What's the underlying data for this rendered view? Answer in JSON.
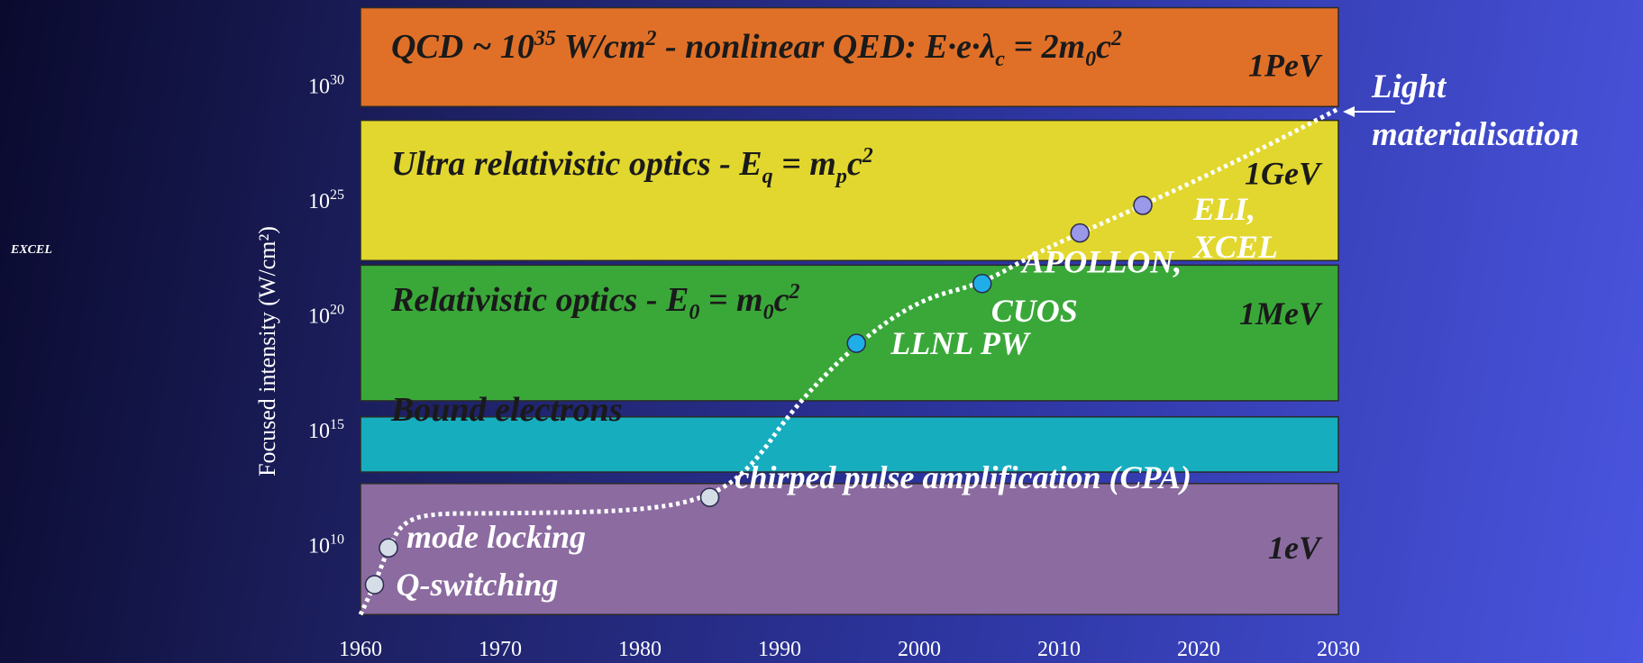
{
  "side_label": "EXCEL",
  "chart_data": {
    "type": "line",
    "ylabel": "Focused intensity (W/cm²)",
    "y_scale": "log",
    "xlim": [
      1960,
      2030
    ],
    "ylim_exp": [
      6.5,
      33.5
    ],
    "x_ticks": [
      1960,
      1970,
      1980,
      1990,
      2000,
      2010,
      2020,
      2030
    ],
    "y_ticks": [
      {
        "base": "10",
        "exp": "10",
        "value_exp": 10
      },
      {
        "base": "10",
        "exp": "15",
        "value_exp": 15
      },
      {
        "base": "10",
        "exp": "20",
        "value_exp": 20
      },
      {
        "base": "10",
        "exp": "25",
        "value_exp": 25
      },
      {
        "base": "10",
        "exp": "30",
        "value_exp": 30
      }
    ],
    "bands": [
      {
        "name": "qcd",
        "lo_exp": 7,
        "hi_exp": 12.7,
        "color": "#8b6ba0",
        "label": ""
      },
      {
        "name": "bound",
        "lo_exp": 13.2,
        "hi_exp": 15.6,
        "color": "#16adbf",
        "label": "Bound electrons"
      },
      {
        "name": "relativistic",
        "lo_exp": 16.3,
        "hi_exp": 22.2,
        "color": "#3aa839",
        "label": "Relativistic optics - E₀ = m₀c²"
      },
      {
        "name": "ultra",
        "lo_exp": 22.4,
        "hi_exp": 28.5,
        "color": "#e2d72e",
        "label": "Ultra relativistic optics - Eq = mpc²"
      },
      {
        "name": "top",
        "lo_exp": 29.1,
        "hi_exp": 33.4,
        "color": "#e07028",
        "label": "QCD ~ 10³⁵ W/cm²  - nonlinear QED: E·e·λc = 2m₀c²"
      }
    ],
    "energy_labels": [
      {
        "text": "1PeV",
        "y_exp": 30.9
      },
      {
        "text": "1GeV",
        "y_exp": 26.2
      },
      {
        "text": "1MeV",
        "y_exp": 20.1
      },
      {
        "text": "1eV",
        "y_exp": 9.9
      }
    ],
    "curve": {
      "x": [
        1960,
        1961,
        1962,
        1963,
        1965,
        1970,
        1980,
        1985,
        1988,
        1991,
        1995.5,
        2000,
        2004.5,
        2008,
        2011.5,
        2016,
        2023,
        2030
      ],
      "y_exp": [
        7.0,
        8.3,
        9.9,
        11.0,
        11.4,
        11.4,
        11.5,
        12.1,
        13.4,
        16.0,
        18.8,
        20.7,
        21.4,
        22.6,
        23.6,
        24.8,
        26.8,
        29.0
      ]
    },
    "points": [
      {
        "label": "Q-switching",
        "x": 1961,
        "y_exp": 8.3,
        "color": "#d5dde6"
      },
      {
        "label": "mode locking",
        "x": 1962,
        "y_exp": 9.9,
        "color": "#d5dde6"
      },
      {
        "label": "chirped pulse amplification (CPA)",
        "x": 1985,
        "y_exp": 12.1,
        "color": "#d5dde6"
      },
      {
        "label": "LLNL PW",
        "x": 1995.5,
        "y_exp": 18.8,
        "color": "#1faee8"
      },
      {
        "label": "CUOS",
        "x": 2004.5,
        "y_exp": 21.4,
        "color": "#1faee8"
      },
      {
        "label": "APOLLON,",
        "x": 2011.5,
        "y_exp": 23.6,
        "color": "#9a98e8"
      },
      {
        "label": "ELI,",
        "x": 2016,
        "y_exp": 24.8,
        "color": "#9a98e8"
      }
    ],
    "extra_labels": [
      {
        "text": "XCEL"
      }
    ],
    "annotation": {
      "line1": "Light",
      "line2": "materialisation"
    }
  }
}
